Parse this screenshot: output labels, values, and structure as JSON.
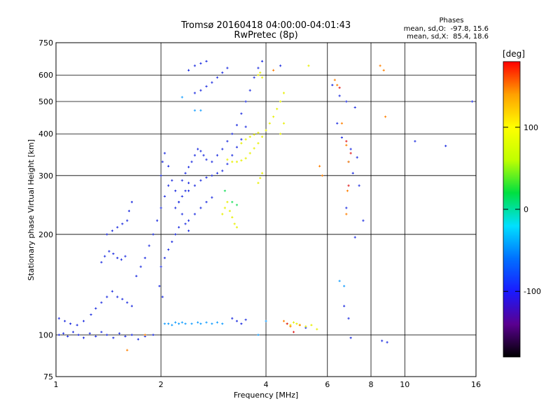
{
  "chart_data": {
    "type": "scatter",
    "title": "Tromsø 20160418 04:00:00-04:01:43",
    "subtitle": "RwPretec (8p)",
    "xlabel": "Frequency [MHz]",
    "ylabel": "Stationary phase Virtual Height [km]",
    "x_scale": "log",
    "y_scale": "log",
    "xlim": [
      1,
      16
    ],
    "ylim": [
      75,
      750
    ],
    "x_ticks": [
      1,
      2,
      4,
      6,
      8,
      10,
      16
    ],
    "y_ticks": [
      75,
      100,
      200,
      300,
      400,
      500,
      600,
      750
    ],
    "grid": true,
    "stats": {
      "heading": "Phases",
      "line_o": "mean, sd,O:  -97.8, 15.6",
      "line_x": "mean, sd,X:  85.4, 18.6"
    },
    "colorbar": {
      "label": "[deg]",
      "range": [
        -180,
        180
      ],
      "ticks": [
        100,
        0,
        -100
      ],
      "colors": [
        "#000000",
        "#5a0090",
        "#1a1aff",
        "#0070ff",
        "#00e0ff",
        "#00e040",
        "#c0ff00",
        "#ffff00",
        "#ffa000",
        "#ff0000"
      ]
    },
    "series": [
      {
        "color": "#2030e0",
        "points": [
          [
            1.02,
            100
          ],
          [
            1.05,
            101
          ],
          [
            1.08,
            99
          ],
          [
            1.12,
            102
          ],
          [
            1.16,
            100
          ],
          [
            1.2,
            98
          ],
          [
            1.25,
            101
          ],
          [
            1.3,
            99
          ],
          [
            1.35,
            102
          ],
          [
            1.4,
            100
          ],
          [
            1.46,
            98
          ],
          [
            1.52,
            101
          ],
          [
            1.58,
            99
          ],
          [
            1.65,
            100
          ],
          [
            1.72,
            97
          ],
          [
            1.8,
            99
          ],
          [
            1.9,
            100
          ],
          [
            1.02,
            112
          ],
          [
            1.06,
            110
          ],
          [
            1.1,
            108
          ],
          [
            1.15,
            107
          ],
          [
            1.2,
            110
          ],
          [
            1.26,
            115
          ],
          [
            1.3,
            120
          ],
          [
            1.35,
            125
          ],
          [
            1.4,
            130
          ],
          [
            1.45,
            135
          ],
          [
            1.5,
            130
          ],
          [
            1.55,
            128
          ],
          [
            1.6,
            125
          ],
          [
            1.65,
            122
          ],
          [
            1.35,
            165
          ],
          [
            1.38,
            172
          ],
          [
            1.42,
            178
          ],
          [
            1.46,
            175
          ],
          [
            1.5,
            170
          ],
          [
            1.54,
            168
          ],
          [
            1.58,
            172
          ],
          [
            1.4,
            200
          ],
          [
            1.45,
            205
          ],
          [
            1.5,
            210
          ],
          [
            1.55,
            215
          ],
          [
            1.6,
            220
          ],
          [
            1.62,
            235
          ],
          [
            1.65,
            250
          ],
          [
            1.7,
            150
          ],
          [
            1.75,
            160
          ],
          [
            1.8,
            170
          ],
          [
            1.85,
            185
          ],
          [
            1.9,
            200
          ],
          [
            1.95,
            220
          ],
          [
            2.0,
            240
          ],
          [
            2.05,
            260
          ],
          [
            2.1,
            280
          ],
          [
            2.0,
            300
          ],
          [
            2.02,
            330
          ],
          [
            2.05,
            350
          ],
          [
            2.1,
            320
          ],
          [
            2.15,
            290
          ],
          [
            2.2,
            270
          ],
          [
            2.25,
            250
          ],
          [
            2.3,
            230
          ],
          [
            2.35,
            215
          ],
          [
            2.4,
            205
          ],
          [
            2.0,
            160
          ],
          [
            2.05,
            170
          ],
          [
            2.1,
            180
          ],
          [
            2.15,
            190
          ],
          [
            2.2,
            200
          ],
          [
            2.25,
            210
          ],
          [
            1.98,
            140
          ],
          [
            2.02,
            130
          ],
          [
            2.3,
            290
          ],
          [
            2.35,
            305
          ],
          [
            2.4,
            318
          ],
          [
            2.45,
            330
          ],
          [
            2.5,
            345
          ],
          [
            2.55,
            360
          ],
          [
            2.6,
            355
          ],
          [
            2.65,
            345
          ],
          [
            2.7,
            335
          ],
          [
            2.4,
            270
          ],
          [
            2.5,
            280
          ],
          [
            2.6,
            290
          ],
          [
            2.7,
            296
          ],
          [
            2.8,
            300
          ],
          [
            2.9,
            305
          ],
          [
            3.0,
            310
          ],
          [
            3.1,
            325
          ],
          [
            3.2,
            345
          ],
          [
            3.3,
            365
          ],
          [
            3.4,
            385
          ],
          [
            3.5,
            420
          ],
          [
            2.4,
            220
          ],
          [
            2.5,
            230
          ],
          [
            2.6,
            240
          ],
          [
            2.7,
            250
          ],
          [
            2.8,
            258
          ],
          [
            2.2,
            240
          ],
          [
            2.25,
            250
          ],
          [
            2.3,
            260
          ],
          [
            2.35,
            270
          ],
          [
            2.4,
            285
          ],
          [
            2.5,
            530
          ],
          [
            2.6,
            540
          ],
          [
            2.7,
            555
          ],
          [
            2.8,
            570
          ],
          [
            2.9,
            590
          ],
          [
            3.0,
            610
          ],
          [
            3.1,
            630
          ],
          [
            2.4,
            620
          ],
          [
            2.5,
            640
          ],
          [
            2.6,
            650
          ],
          [
            2.7,
            660
          ],
          [
            2.8,
            330
          ],
          [
            2.9,
            345
          ],
          [
            3.0,
            360
          ],
          [
            3.1,
            380
          ],
          [
            3.2,
            400
          ],
          [
            3.3,
            425
          ],
          [
            3.4,
            460
          ],
          [
            3.5,
            500
          ],
          [
            3.6,
            540
          ],
          [
            3.7,
            590
          ],
          [
            3.8,
            630
          ],
          [
            3.9,
            660
          ],
          [
            3.2,
            112
          ],
          [
            3.3,
            110
          ],
          [
            3.4,
            108
          ],
          [
            3.5,
            111
          ],
          [
            4.4,
            640
          ],
          [
            5.2,
            105
          ],
          [
            6.2,
            560
          ],
          [
            6.5,
            520
          ],
          [
            6.8,
            500
          ],
          [
            7.2,
            480
          ],
          [
            6.4,
            430
          ],
          [
            6.6,
            390
          ],
          [
            7.0,
            360
          ],
          [
            7.3,
            340
          ],
          [
            6.9,
            330
          ],
          [
            7.1,
            305
          ],
          [
            7.4,
            280
          ],
          [
            6.8,
            240
          ],
          [
            7.6,
            220
          ],
          [
            7.2,
            196
          ],
          [
            6.7,
            122
          ],
          [
            6.9,
            112
          ],
          [
            7.0,
            98
          ],
          [
            8.6,
            96
          ],
          [
            8.9,
            95
          ],
          [
            10.7,
            380
          ],
          [
            15.6,
            500
          ],
          [
            13.1,
            368
          ]
        ]
      },
      {
        "color": "#1aa0ff",
        "points": [
          [
            2.05,
            108
          ],
          [
            2.1,
            108
          ],
          [
            2.15,
            107
          ],
          [
            2.2,
            109
          ],
          [
            2.25,
            108
          ],
          [
            2.3,
            109
          ],
          [
            2.35,
            108
          ],
          [
            2.45,
            108
          ],
          [
            2.55,
            109
          ],
          [
            2.6,
            108
          ],
          [
            2.7,
            109
          ],
          [
            2.8,
            108
          ],
          [
            2.9,
            109
          ],
          [
            3.0,
            108
          ],
          [
            2.3,
            515
          ],
          [
            2.5,
            470
          ],
          [
            2.6,
            470
          ],
          [
            3.8,
            100
          ],
          [
            4.0,
            110
          ],
          [
            6.5,
            145
          ],
          [
            6.7,
            140
          ]
        ]
      },
      {
        "color": "#e8f000",
        "points": [
          [
            3.1,
            335
          ],
          [
            3.2,
            330
          ],
          [
            3.3,
            330
          ],
          [
            3.4,
            333
          ],
          [
            3.5,
            338
          ],
          [
            3.6,
            350
          ],
          [
            3.7,
            362
          ],
          [
            3.8,
            375
          ],
          [
            3.9,
            392
          ],
          [
            4.0,
            410
          ],
          [
            4.1,
            430
          ],
          [
            4.2,
            450
          ],
          [
            4.3,
            475
          ],
          [
            4.4,
            500
          ],
          [
            4.5,
            530
          ],
          [
            3.4,
            375
          ],
          [
            3.5,
            385
          ],
          [
            3.6,
            392
          ],
          [
            3.7,
            398
          ],
          [
            3.8,
            403
          ],
          [
            3.8,
            600
          ],
          [
            3.85,
            610
          ],
          [
            3.9,
            590
          ],
          [
            3.0,
            230
          ],
          [
            3.05,
            240
          ],
          [
            3.1,
            250
          ],
          [
            3.15,
            235
          ],
          [
            3.2,
            225
          ],
          [
            3.25,
            215
          ],
          [
            3.3,
            210
          ],
          [
            3.8,
            285
          ],
          [
            3.85,
            295
          ],
          [
            3.9,
            305
          ],
          [
            4.6,
            108
          ],
          [
            4.7,
            107
          ],
          [
            4.8,
            109
          ],
          [
            4.9,
            108
          ],
          [
            5.0,
            107
          ],
          [
            5.2,
            106
          ],
          [
            5.4,
            107
          ],
          [
            5.6,
            104
          ],
          [
            5.3,
            640
          ],
          [
            4.4,
            400
          ],
          [
            4.5,
            430
          ]
        ]
      },
      {
        "color": "#20e060",
        "points": [
          [
            3.2,
            250
          ],
          [
            3.3,
            245
          ],
          [
            3.05,
            270
          ]
        ]
      },
      {
        "color": "#ff8000",
        "points": [
          [
            4.2,
            620
          ],
          [
            4.5,
            110
          ],
          [
            4.7,
            106
          ],
          [
            5.0,
            107
          ],
          [
            5.7,
            320
          ],
          [
            5.8,
            300
          ],
          [
            6.3,
            580
          ],
          [
            6.4,
            560
          ],
          [
            6.6,
            430
          ],
          [
            6.8,
            370
          ],
          [
            6.9,
            330
          ],
          [
            6.85,
            270
          ],
          [
            6.8,
            230
          ],
          [
            8.5,
            640
          ],
          [
            8.7,
            620
          ],
          [
            8.8,
            450
          ],
          [
            1.6,
            90
          ],
          [
            1.8,
            100
          ]
        ]
      },
      {
        "color": "#e02020",
        "points": [
          [
            4.6,
            108
          ],
          [
            4.8,
            102
          ],
          [
            6.5,
            550
          ],
          [
            6.8,
            380
          ],
          [
            7.0,
            350
          ],
          [
            6.9,
            280
          ]
        ]
      }
    ]
  }
}
